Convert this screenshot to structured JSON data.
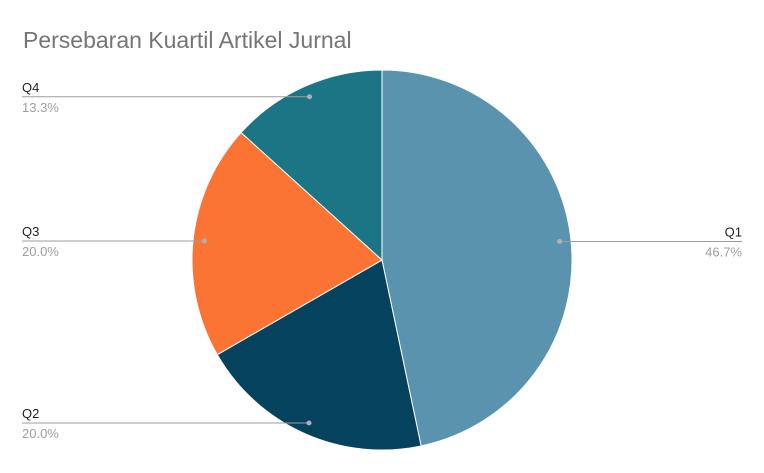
{
  "chart_data": {
    "type": "pie",
    "title": "Persebaran Kuartil Artikel Jurnal",
    "categories": [
      "Q1",
      "Q2",
      "Q3",
      "Q4"
    ],
    "values": [
      46.7,
      20.0,
      20.0,
      13.3
    ],
    "value_labels": [
      "46.7%",
      "20.0%",
      "20.0%",
      "13.3%"
    ],
    "colors": [
      "#5a93ad",
      "#04425e",
      "#fb7433",
      "#1c7585"
    ],
    "legend": "none",
    "label_style": "callout lines with label and percentage"
  }
}
